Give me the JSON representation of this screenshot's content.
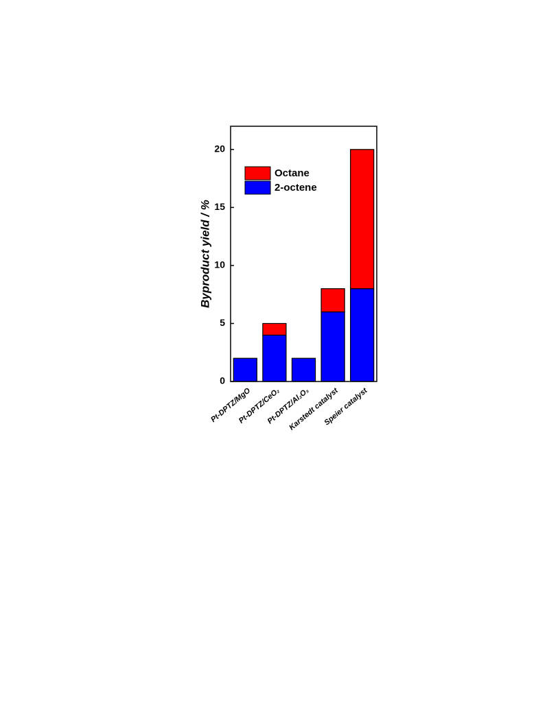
{
  "chart_data": {
    "type": "stacked-bar",
    "ylabel": "Byproduct yield / %",
    "categories": [
      "Pt-DPTZ/MgO",
      "Pt-DPTZ/CeO₂",
      "Pt-DPTZ/Al₂O₃",
      "Karstedt catalyst",
      "Speier catalyst"
    ],
    "series": [
      {
        "name": "2-octene",
        "color": "#0000ff",
        "values": [
          2,
          4,
          2,
          6,
          8
        ]
      },
      {
        "name": "Octane",
        "color": "#ff0000",
        "values": [
          0,
          1,
          0,
          2,
          12
        ]
      }
    ],
    "ylim": [
      0,
      22
    ],
    "yticks": [
      0,
      5,
      10,
      15,
      20
    ],
    "legend": "upper left"
  }
}
